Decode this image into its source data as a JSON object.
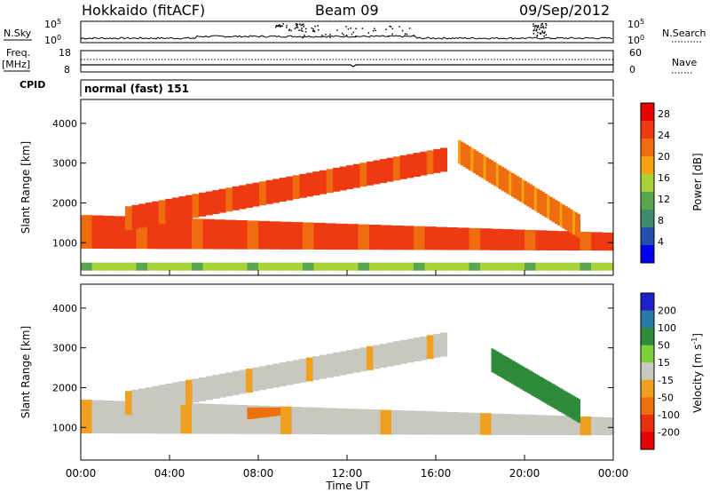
{
  "header": {
    "station": "Hokkaido (fitACF)",
    "beam": "Beam 09",
    "date": "09/Sep/2012"
  },
  "top_panels": {
    "nsky_label": "N.Sky",
    "nsky_ticks": [
      "10^5",
      "10^0"
    ],
    "nsearch_label": "N.Search",
    "nsearch_ticks": [
      "10^5",
      "10^0"
    ],
    "freq_label": "Freq.",
    "freq_unit": "[MHz]",
    "freq_ticks": [
      "18",
      "8"
    ],
    "nave_label": "Nave",
    "nave_ticks": [
      "60",
      "0"
    ],
    "cpid_label": "CPID",
    "cpid_text": "normal (fast) 151"
  },
  "colors": {
    "power_scale": [
      "#0000ee",
      "#224fb0",
      "#3f8a6a",
      "#5aa64e",
      "#a7d23a",
      "#f5a312",
      "#f06c10",
      "#ee3a10",
      "#e80000"
    ],
    "velocity_scale": [
      "#2020c8",
      "#2a7aa8",
      "#2f8a3a",
      "#7ed03c",
      "#c8c8c0",
      "#f0a020",
      "#ee7010",
      "#e83010",
      "#e40000"
    ]
  },
  "chart_data": [
    {
      "type": "heatmap",
      "title": "",
      "xlabel": "",
      "ylabel": "Slant Range [km]",
      "xlim": [
        "00:00",
        "24:00"
      ],
      "ylim": [
        180,
        4600
      ],
      "x_ticks": [
        "00:00",
        "04:00",
        "08:00",
        "12:00",
        "16:00",
        "20:00",
        "00:00"
      ],
      "y_ticks": [
        1000,
        2000,
        3000,
        4000
      ],
      "colorbar": {
        "label": "Power [dB]",
        "ticks": [
          4,
          8,
          12,
          16,
          20,
          24,
          28
        ],
        "range": [
          0,
          30
        ]
      },
      "bands": [
        {
          "t": [
            0,
            24
          ],
          "r_low": [
            850,
            800
          ],
          "r_high": [
            1700,
            1250
          ],
          "level_db": 28
        },
        {
          "t": [
            2,
            16.5
          ],
          "r_low": [
            1300,
            2800
          ],
          "r_high": [
            1900,
            3400
          ],
          "level_db": 26
        },
        {
          "t": [
            17,
            22.5
          ],
          "r_low": [
            3000,
            1100
          ],
          "r_high": [
            3600,
            1700
          ],
          "level_db": 24
        },
        {
          "t": [
            0,
            24
          ],
          "r_low": [
            300,
            300
          ],
          "r_high": [
            500,
            500
          ],
          "level_db": 14
        }
      ]
    },
    {
      "type": "heatmap",
      "title": "",
      "xlabel": "Time UT",
      "ylabel": "Slant Range [km]",
      "xlim": [
        "00:00",
        "24:00"
      ],
      "ylim": [
        180,
        4600
      ],
      "x_ticks": [
        "00:00",
        "04:00",
        "08:00",
        "12:00",
        "16:00",
        "20:00",
        "00:00"
      ],
      "y_ticks": [
        1000,
        2000,
        3000,
        4000
      ],
      "colorbar": {
        "label": "Velocity [m s^-1]",
        "ticks": [
          200,
          100,
          50,
          15,
          -15,
          -50,
          -100,
          -200
        ],
        "range": [
          -250,
          250
        ]
      },
      "bands": [
        {
          "t": [
            0,
            24
          ],
          "r_low": [
            850,
            800
          ],
          "r_high": [
            1700,
            1250
          ],
          "velocity": 0
        },
        {
          "t": [
            2,
            16.5
          ],
          "r_low": [
            1300,
            2800
          ],
          "r_high": [
            1900,
            3400
          ],
          "velocity": 0
        },
        {
          "t": [
            18.5,
            22.5
          ],
          "r_low": [
            2400,
            1100
          ],
          "r_high": [
            3000,
            1700
          ],
          "velocity": 60
        },
        {
          "t": [
            7.5,
            9
          ],
          "r_low": [
            1200,
            1300
          ],
          "r_high": [
            1500,
            1500
          ],
          "velocity": -60
        }
      ]
    }
  ]
}
